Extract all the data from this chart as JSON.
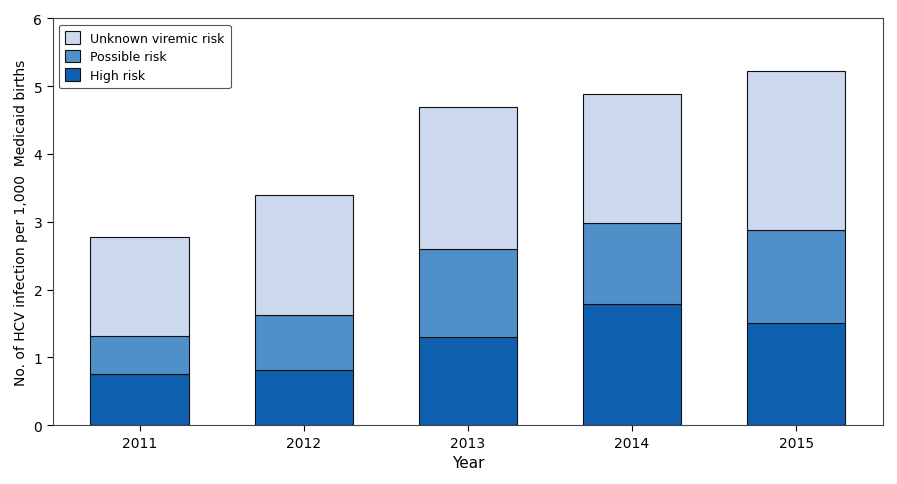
{
  "years": [
    "2011",
    "2012",
    "2013",
    "2014",
    "2015"
  ],
  "high_risk": [
    0.75,
    0.82,
    1.3,
    1.78,
    1.5
  ],
  "possible_risk": [
    0.57,
    0.8,
    1.3,
    1.2,
    1.38
  ],
  "unknown_risk": [
    1.45,
    1.78,
    2.1,
    1.9,
    2.35
  ],
  "color_high": "#1060b0",
  "color_possible": "#5090c8",
  "color_unknown": "#ccd8ee",
  "ylabel": "No. of HCV infection per 1,000  Medicaid births",
  "xlabel": "Year",
  "ylim": [
    0,
    6
  ],
  "yticks": [
    0,
    1,
    2,
    3,
    4,
    5,
    6
  ],
  "legend_labels": [
    "Unknown viremic risk",
    "Possible risk",
    "High risk"
  ],
  "bar_width": 0.6,
  "edgecolor": "#111111",
  "background_color": "#ffffff",
  "frame_color": "#888888"
}
